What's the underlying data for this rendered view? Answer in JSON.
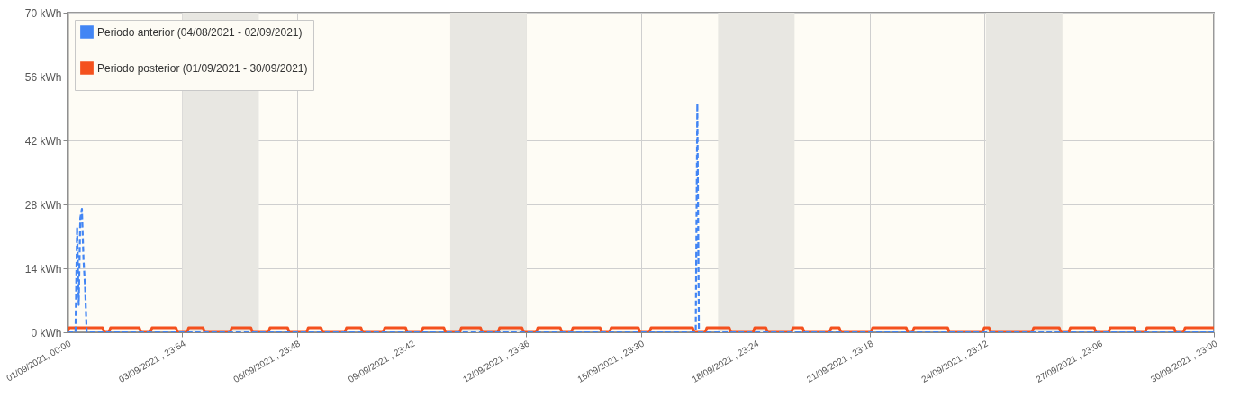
{
  "chart_data": {
    "type": "line",
    "xlim": [
      "2021-09-01T00:00",
      "2021-09-30T23:00"
    ],
    "xticks": [
      {
        "value": "2021-09-01T00:00",
        "label": "01/09/2021, 00:00"
      },
      {
        "value": "2021-09-03T23:54",
        "label": "03/09/2021 , 23:54"
      },
      {
        "value": "2021-09-06T23:48",
        "label": "06/09/2021 , 23:48"
      },
      {
        "value": "2021-09-09T23:42",
        "label": "09/09/2021 , 23:42"
      },
      {
        "value": "2021-09-12T23:36",
        "label": "12/09/2021 , 23:36"
      },
      {
        "value": "2021-09-15T23:30",
        "label": "15/09/2021 , 23:30"
      },
      {
        "value": "2021-09-18T23:24",
        "label": "18/09/2021 , 23:24"
      },
      {
        "value": "2021-09-21T23:18",
        "label": "21/09/2021 , 23:18"
      },
      {
        "value": "2021-09-24T23:12",
        "label": "24/09/2021 , 23:12"
      },
      {
        "value": "2021-09-27T23:06",
        "label": "27/09/2021 , 23:06"
      },
      {
        "value": "2021-09-30T23:00",
        "label": "30/09/2021 , 23:00"
      }
    ],
    "ylim": [
      0,
      70
    ],
    "yticks": [
      {
        "value": 0,
        "label": "0 kWh"
      },
      {
        "value": 14,
        "label": "14 kWh"
      },
      {
        "value": 28,
        "label": "28 kWh"
      },
      {
        "value": 42,
        "label": "42 kWh"
      },
      {
        "value": 56,
        "label": "56 kWh"
      },
      {
        "value": 70,
        "label": "70 kWh"
      }
    ],
    "grid": true,
    "legend": "top left",
    "bands": [
      {
        "axis": "x",
        "from": "2021-09-04T00:00",
        "to": "2021-09-06T00:00",
        "color": "#e8e7e2"
      },
      {
        "axis": "x",
        "from": "2021-09-11T00:00",
        "to": "2021-09-13T00:00",
        "color": "#e8e7e2"
      },
      {
        "axis": "x",
        "from": "2021-09-18T00:00",
        "to": "2021-09-20T00:00",
        "color": "#e8e7e2"
      },
      {
        "axis": "x",
        "from": "2021-09-25T00:00",
        "to": "2021-09-27T00:00",
        "color": "#e8e7e2"
      }
    ],
    "series": [
      {
        "name": "Periodo posterior (01/09/2021 - 30/09/2021)",
        "color": "#f4511e",
        "line_style": "solid",
        "x": [
          "2021-09-01T00:00",
          "2021-09-01T01:00",
          "2021-09-01T22:00",
          "2021-09-01T23:00",
          "2021-09-02T02:00",
          "2021-09-02T03:00",
          "2021-09-02T21:00",
          "2021-09-02T22:00",
          "2021-09-03T04:00",
          "2021-09-03T05:00",
          "2021-09-03T20:00",
          "2021-09-03T21:00",
          "2021-09-04T03:00",
          "2021-09-04T04:00",
          "2021-09-04T13:00",
          "2021-09-04T14:00",
          "2021-09-05T06:00",
          "2021-09-05T07:00",
          "2021-09-05T19:00",
          "2021-09-05T20:00",
          "2021-09-06T06:00",
          "2021-09-06T07:00",
          "2021-09-06T18:00",
          "2021-09-06T19:00",
          "2021-09-07T06:00",
          "2021-09-07T07:00",
          "2021-09-07T15:00",
          "2021-09-07T16:00",
          "2021-09-08T06:00",
          "2021-09-08T07:00",
          "2021-09-08T16:00",
          "2021-09-08T17:00",
          "2021-09-09T06:00",
          "2021-09-09T07:00",
          "2021-09-09T20:00",
          "2021-09-09T21:00",
          "2021-09-10T06:00",
          "2021-09-10T07:00",
          "2021-09-10T20:00",
          "2021-09-10T21:00",
          "2021-09-11T06:00",
          "2021-09-11T07:00",
          "2021-09-11T19:00",
          "2021-09-11T20:00",
          "2021-09-12T06:00",
          "2021-09-12T07:00",
          "2021-09-12T21:00",
          "2021-09-12T22:00",
          "2021-09-13T06:00",
          "2021-09-13T07:00",
          "2021-09-13T21:00",
          "2021-09-13T22:00",
          "2021-09-14T04:00",
          "2021-09-14T05:00",
          "2021-09-14T22:00",
          "2021-09-14T23:00",
          "2021-09-15T04:00",
          "2021-09-15T05:00",
          "2021-09-15T22:00",
          "2021-09-15T23:00",
          "2021-09-16T05:00",
          "2021-09-16T06:00",
          "2021-09-17T08:00",
          "2021-09-17T09:00",
          "2021-09-17T16:00",
          "2021-09-17T17:00",
          "2021-09-18T07:00",
          "2021-09-18T08:00",
          "2021-09-18T22:00",
          "2021-09-18T23:00",
          "2021-09-19T06:00",
          "2021-09-19T07:00",
          "2021-09-19T22:00",
          "2021-09-19T23:00",
          "2021-09-20T05:00",
          "2021-09-20T06:00",
          "2021-09-20T22:00",
          "2021-09-20T23:00",
          "2021-09-21T04:00",
          "2021-09-21T05:00",
          "2021-09-22T00:00",
          "2021-09-22T01:00",
          "2021-09-22T22:00",
          "2021-09-22T23:00",
          "2021-09-23T02:00",
          "2021-09-23T03:00",
          "2021-09-24T00:00",
          "2021-09-24T01:00",
          "2021-09-24T22:00",
          "2021-09-24T23:00",
          "2021-09-25T02:00",
          "2021-09-25T03:00",
          "2021-09-26T05:00",
          "2021-09-26T06:00",
          "2021-09-26T22:00",
          "2021-09-26T23:00",
          "2021-09-27T04:00",
          "2021-09-27T05:00",
          "2021-09-27T20:00",
          "2021-09-27T21:00",
          "2021-09-28T05:00",
          "2021-09-28T06:00",
          "2021-09-28T21:00",
          "2021-09-28T22:00",
          "2021-09-29T04:00",
          "2021-09-29T05:00",
          "2021-09-29T22:00",
          "2021-09-29T23:00",
          "2021-09-30T04:00",
          "2021-09-30T05:00",
          "2021-09-30T23:00"
        ],
        "values": [
          0,
          1,
          1,
          0,
          0,
          1,
          1,
          0,
          0,
          1,
          1,
          0,
          0,
          1,
          1,
          0,
          0,
          1,
          1,
          0,
          0,
          1,
          1,
          0,
          0,
          1,
          1,
          0,
          0,
          1,
          1,
          0,
          0,
          1,
          1,
          0,
          0,
          1,
          1,
          0,
          0,
          1,
          1,
          0,
          0,
          1,
          1,
          0,
          0,
          1,
          1,
          0,
          0,
          1,
          1,
          0,
          0,
          1,
          1,
          0,
          0,
          1,
          1,
          0,
          0,
          1,
          1,
          0,
          0,
          1,
          1,
          0,
          0,
          1,
          1,
          0,
          0,
          1,
          1,
          0,
          0,
          1,
          1,
          0,
          0,
          1,
          1,
          0,
          0,
          1,
          1,
          0,
          0,
          1,
          1,
          0,
          0,
          1,
          1,
          0,
          0,
          1,
          1,
          0,
          0,
          1,
          1,
          0,
          0,
          1,
          1
        ]
      },
      {
        "name": "Periodo anterior (04/08/2021 - 02/09/2021)",
        "color": "#4285f4",
        "line_style": "dashed",
        "x": [
          "2021-09-01T00:00",
          "2021-09-01T05:00",
          "2021-09-01T06:00",
          "2021-09-01T07:00",
          "2021-09-01T08:00",
          "2021-09-01T09:00",
          "2021-09-01T10:00",
          "2021-09-01T11:00",
          "2021-09-01T12:00",
          "2021-09-17T10:00",
          "2021-09-17T11:00",
          "2021-09-17T12:00",
          "2021-09-30T23:00"
        ],
        "values": [
          0,
          0,
          23,
          6,
          25,
          27,
          16,
          10,
          0,
          0,
          50,
          0,
          0
        ]
      }
    ]
  }
}
